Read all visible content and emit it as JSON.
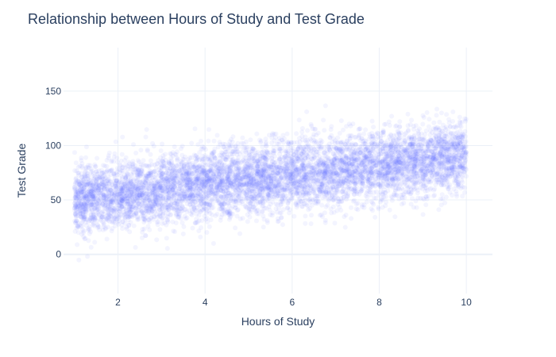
{
  "chart_data": {
    "type": "scatter",
    "title": "Relationship between Hours of Study and Test Grade",
    "xlabel": "Hours of Study",
    "ylabel": "Test Grade",
    "xlim": [
      0.75,
      10.6
    ],
    "ylim": [
      -36,
      190
    ],
    "x_ticks": [
      2,
      4,
      6,
      8,
      10
    ],
    "y_ticks": [
      0,
      50,
      100,
      150
    ],
    "grid": true,
    "legend": "none",
    "marker_color": "#636efa",
    "marker_opacity": 0.08,
    "series": [
      {
        "x_range": [
          1,
          10
        ],
        "trend": {
          "intercept": 45.5,
          "slope": 4.5
        },
        "spread_sd": 16,
        "points": [
          {
            "x": 1.0,
            "y": 50
          },
          {
            "x": 2.0,
            "y": 54.5
          },
          {
            "x": 3.0,
            "y": 59
          },
          {
            "x": 4.0,
            "y": 63.5
          },
          {
            "x": 5.0,
            "y": 68
          },
          {
            "x": 6.0,
            "y": 72.5
          },
          {
            "x": 7.0,
            "y": 77
          },
          {
            "x": 8.0,
            "y": 81.5
          },
          {
            "x": 9.0,
            "y": 86
          },
          {
            "x": 10.0,
            "y": 90.5
          }
        ]
      }
    ]
  }
}
